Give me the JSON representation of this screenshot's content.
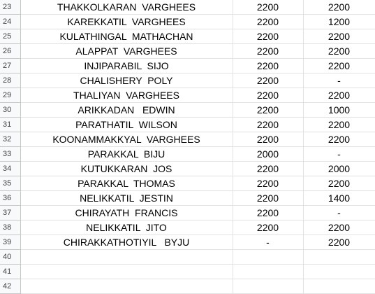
{
  "rows": [
    {
      "num": "23",
      "name": "THAKKOLKARAN  VARGHEES",
      "col1": "2200",
      "col2": "2200"
    },
    {
      "num": "24",
      "name": "KAREKKATIL  VARGHEES",
      "col1": "2200",
      "col2": "1200"
    },
    {
      "num": "25",
      "name": "KULATHINGAL  MATHACHAN",
      "col1": "2200",
      "col2": "2200"
    },
    {
      "num": "26",
      "name": "ALAPPAT  VARGHEES",
      "col1": "2200",
      "col2": "2200"
    },
    {
      "num": "27",
      "name": "INJIPARABIL  SIJO",
      "col1": "2200",
      "col2": "2200"
    },
    {
      "num": "28",
      "name": "CHALISHERY  POLY",
      "col1": "2200",
      "col2": "-"
    },
    {
      "num": "29",
      "name": "THALIYAN  VARGHEES",
      "col1": "2200",
      "col2": "2200"
    },
    {
      "num": "30",
      "name": "ARIKKADAN   EDWIN",
      "col1": "2200",
      "col2": "1000"
    },
    {
      "num": "31",
      "name": "PARATHATIL  WILSON",
      "col1": "2200",
      "col2": "2200"
    },
    {
      "num": "32",
      "name": "KOONAMMAKKYAL  VARGHEES",
      "col1": "2200",
      "col2": "2200"
    },
    {
      "num": "33",
      "name": "PARAKKAL  BIJU",
      "col1": "2000",
      "col2": "-"
    },
    {
      "num": "34",
      "name": "KUTUKKARAN  JOS",
      "col1": "2200",
      "col2": "2000"
    },
    {
      "num": "35",
      "name": "PARAKKAL  THOMAS",
      "col1": "2200",
      "col2": "2200"
    },
    {
      "num": "36",
      "name": "NELIKKATIL  JESTIN",
      "col1": "2200",
      "col2": "1400"
    },
    {
      "num": "37",
      "name": "CHIRAYATH  FRANCIS",
      "col1": "2200",
      "col2": "-"
    },
    {
      "num": "38",
      "name": "NELIKKATIL  JITO",
      "col1": "2200",
      "col2": "2200"
    },
    {
      "num": "39",
      "name": "CHIRAKKATHOTIYIL   BYJU",
      "col1": "-",
      "col2": "2200"
    },
    {
      "num": "40",
      "name": "",
      "col1": "",
      "col2": ""
    },
    {
      "num": "41",
      "name": "",
      "col1": "",
      "col2": ""
    },
    {
      "num": "42",
      "name": "",
      "col1": "",
      "col2": ""
    }
  ]
}
